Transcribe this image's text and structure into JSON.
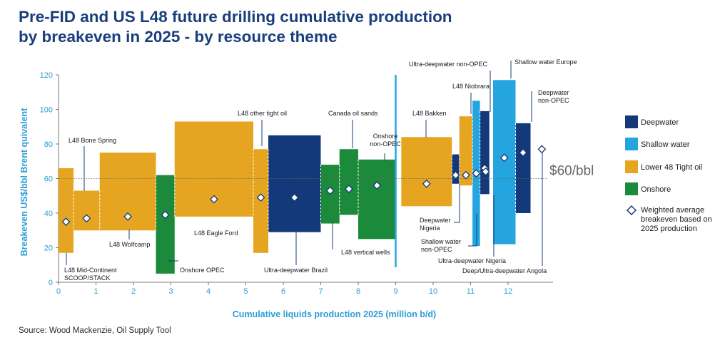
{
  "title_line1": "Pre-FID and US L48 future drilling cumulative production",
  "title_line2": "by breakeven in 2025 - by resource theme",
  "source": "Source: Wood Mackenzie, Oil Supply Tool",
  "chart_data": {
    "type": "bar",
    "subtype": "variable-width supply curve with range bars",
    "xlabel": "Cumulative liquids production 2025 (million b/d)",
    "ylabel": "Breakeven US$/bbl Brent quivalent",
    "xlim": [
      0,
      13.2
    ],
    "ylim": [
      0,
      120
    ],
    "xticks": [
      0,
      1,
      2,
      3,
      4,
      5,
      6,
      7,
      8,
      9,
      10,
      11,
      12
    ],
    "yticks": [
      0,
      20,
      40,
      60,
      80,
      100,
      120
    ],
    "grid": false,
    "reference_line": {
      "y": 60,
      "label": "$60/bbl"
    },
    "vertical_marker_x": 9.0,
    "legend_position": "right",
    "colors": {
      "Deepwater": "#14397a",
      "Shallow water": "#24a5df",
      "Lower 48 Tight oil": "#e6a520",
      "Onshore": "#1b8a3a"
    },
    "legend": [
      {
        "name": "Deepwater",
        "type": "Deepwater"
      },
      {
        "name": "Shallow water",
        "type": "Shallow water"
      },
      {
        "name": "Lower 48 Tight oil",
        "type": "Lower 48 Tight oil"
      },
      {
        "name": "Onshore",
        "type": "Onshore"
      },
      {
        "name": "Weighted average breakeven based on 2025 production",
        "type": "marker"
      }
    ],
    "series": [
      {
        "name": "L48 Mid-Continent SCOOP/STACK",
        "type": "Lower 48 Tight oil",
        "x_start": 0.0,
        "x_end": 0.4,
        "low": 17,
        "high": 66,
        "avg": 35
      },
      {
        "name": "L48 Bone Spring",
        "type": "Lower 48 Tight oil",
        "x_start": 0.4,
        "x_end": 1.1,
        "low": 30,
        "high": 53,
        "avg": 37
      },
      {
        "name": "L48 Wolfcamp",
        "type": "Lower 48 Tight oil",
        "x_start": 1.1,
        "x_end": 2.6,
        "low": 30,
        "high": 75,
        "avg": 38
      },
      {
        "name": "Onshore OPEC",
        "type": "Onshore",
        "x_start": 2.6,
        "x_end": 3.1,
        "low": 5,
        "high": 62,
        "avg": 39
      },
      {
        "name": "L48 Eagle Ford",
        "type": "Lower 48 Tight oil",
        "x_start": 3.1,
        "x_end": 5.2,
        "low": 38,
        "high": 93,
        "avg": 48
      },
      {
        "name": "L48 other tight oil",
        "type": "Lower 48 Tight oil",
        "x_start": 5.2,
        "x_end": 5.6,
        "low": 17,
        "high": 77,
        "avg": 49
      },
      {
        "name": "Ultra-deepwater Brazil",
        "type": "Deepwater",
        "x_start": 5.6,
        "x_end": 7.0,
        "low": 29,
        "high": 85,
        "avg": 49
      },
      {
        "name": "L48 vertical wells",
        "type": "Onshore",
        "x_start": 7.0,
        "x_end": 7.5,
        "low": 34,
        "high": 68,
        "avg": 53
      },
      {
        "name": "Canada oil sands",
        "type": "Onshore",
        "x_start": 7.5,
        "x_end": 8.0,
        "low": 39,
        "high": 77,
        "avg": 54
      },
      {
        "name": "Onshore non-OPEC",
        "type": "Onshore",
        "x_start": 8.0,
        "x_end": 9.0,
        "low": 25,
        "high": 71,
        "avg": 56
      },
      {
        "name": "L48 Bakken",
        "type": "Lower 48 Tight oil",
        "x_start": 9.15,
        "x_end": 10.5,
        "low": 44,
        "high": 84,
        "avg": 57
      },
      {
        "name": "Deepwater Nigeria",
        "type": "Deepwater",
        "x_start": 10.5,
        "x_end": 10.7,
        "low": 57,
        "high": 74,
        "avg": 62
      },
      {
        "name": "L48 Niobrara",
        "type": "Lower 48 Tight oil",
        "x_start": 10.7,
        "x_end": 11.05,
        "low": 56,
        "high": 96,
        "avg": 62
      },
      {
        "name": "Shallow water non-OPEC",
        "type": "Shallow water",
        "x_start": 11.05,
        "x_end": 11.25,
        "low": 21,
        "high": 105,
        "avg": 63
      },
      {
        "name": "Ultra-deepwater Nigeria",
        "type": "Deepwater",
        "x_start": 11.25,
        "x_end": 11.5,
        "low": 51,
        "high": 99,
        "avg": 66
      },
      {
        "name": "Ultra-deepwater non-OPEC",
        "type": "Deepwater",
        "x_start": 11.25,
        "x_end": 11.25,
        "low": 64,
        "high": 64,
        "avg": 64
      },
      {
        "name": "Shallow water Europe",
        "type": "Shallow water",
        "x_start": 11.6,
        "x_end": 12.2,
        "low": 22,
        "high": 117,
        "avg": 72
      },
      {
        "name": "Deepwater non-OPEC",
        "type": "Deepwater",
        "x_start": 12.2,
        "x_end": 12.6,
        "low": 40,
        "high": 92,
        "avg": 75
      },
      {
        "name": "Deep/Ultra-deepwater Angola",
        "type": "Deepwater",
        "x_start": 12.75,
        "x_end": 12.75,
        "low": 77,
        "high": 77,
        "avg": 77
      }
    ]
  }
}
